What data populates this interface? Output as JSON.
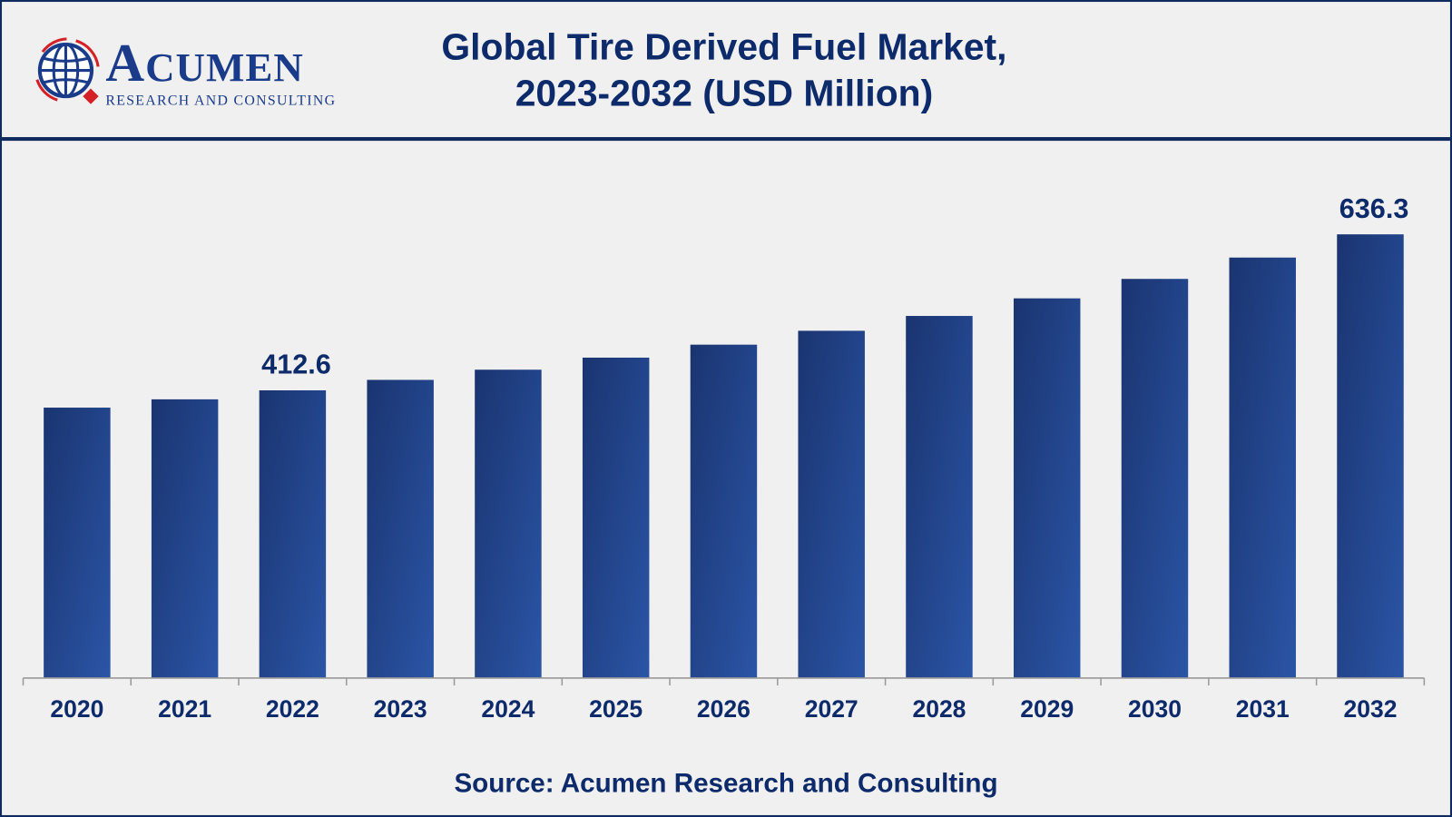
{
  "header": {
    "title_line1": "Global Tire Derived Fuel Market,",
    "title_line2": "2023-2032 (USD Million)",
    "logo_name": "ACUMEN",
    "logo_tagline": "RESEARCH AND CONSULTING"
  },
  "chart_data": {
    "type": "bar",
    "title": "Global Tire Derived Fuel Market, 2023-2032 (USD Million)",
    "xlabel": "",
    "ylabel": "USD Million",
    "categories": [
      "2020",
      "2021",
      "2022",
      "2023",
      "2024",
      "2025",
      "2026",
      "2027",
      "2028",
      "2029",
      "2030",
      "2031",
      "2032"
    ],
    "values": [
      387.8,
      399.7,
      412.6,
      427.6,
      442.2,
      459.5,
      478.1,
      498.0,
      519.3,
      544.5,
      572.4,
      603.0,
      636.3
    ],
    "data_labels": {
      "2022": "412.6",
      "2032": "636.3"
    },
    "ylim": [
      0,
      700
    ],
    "grid": false,
    "legend": "none",
    "bar_color_dark": "#1a3470",
    "bar_color_light": "#2b55a6"
  },
  "footer": {
    "source": "Source: Acumen Research and Consulting"
  }
}
